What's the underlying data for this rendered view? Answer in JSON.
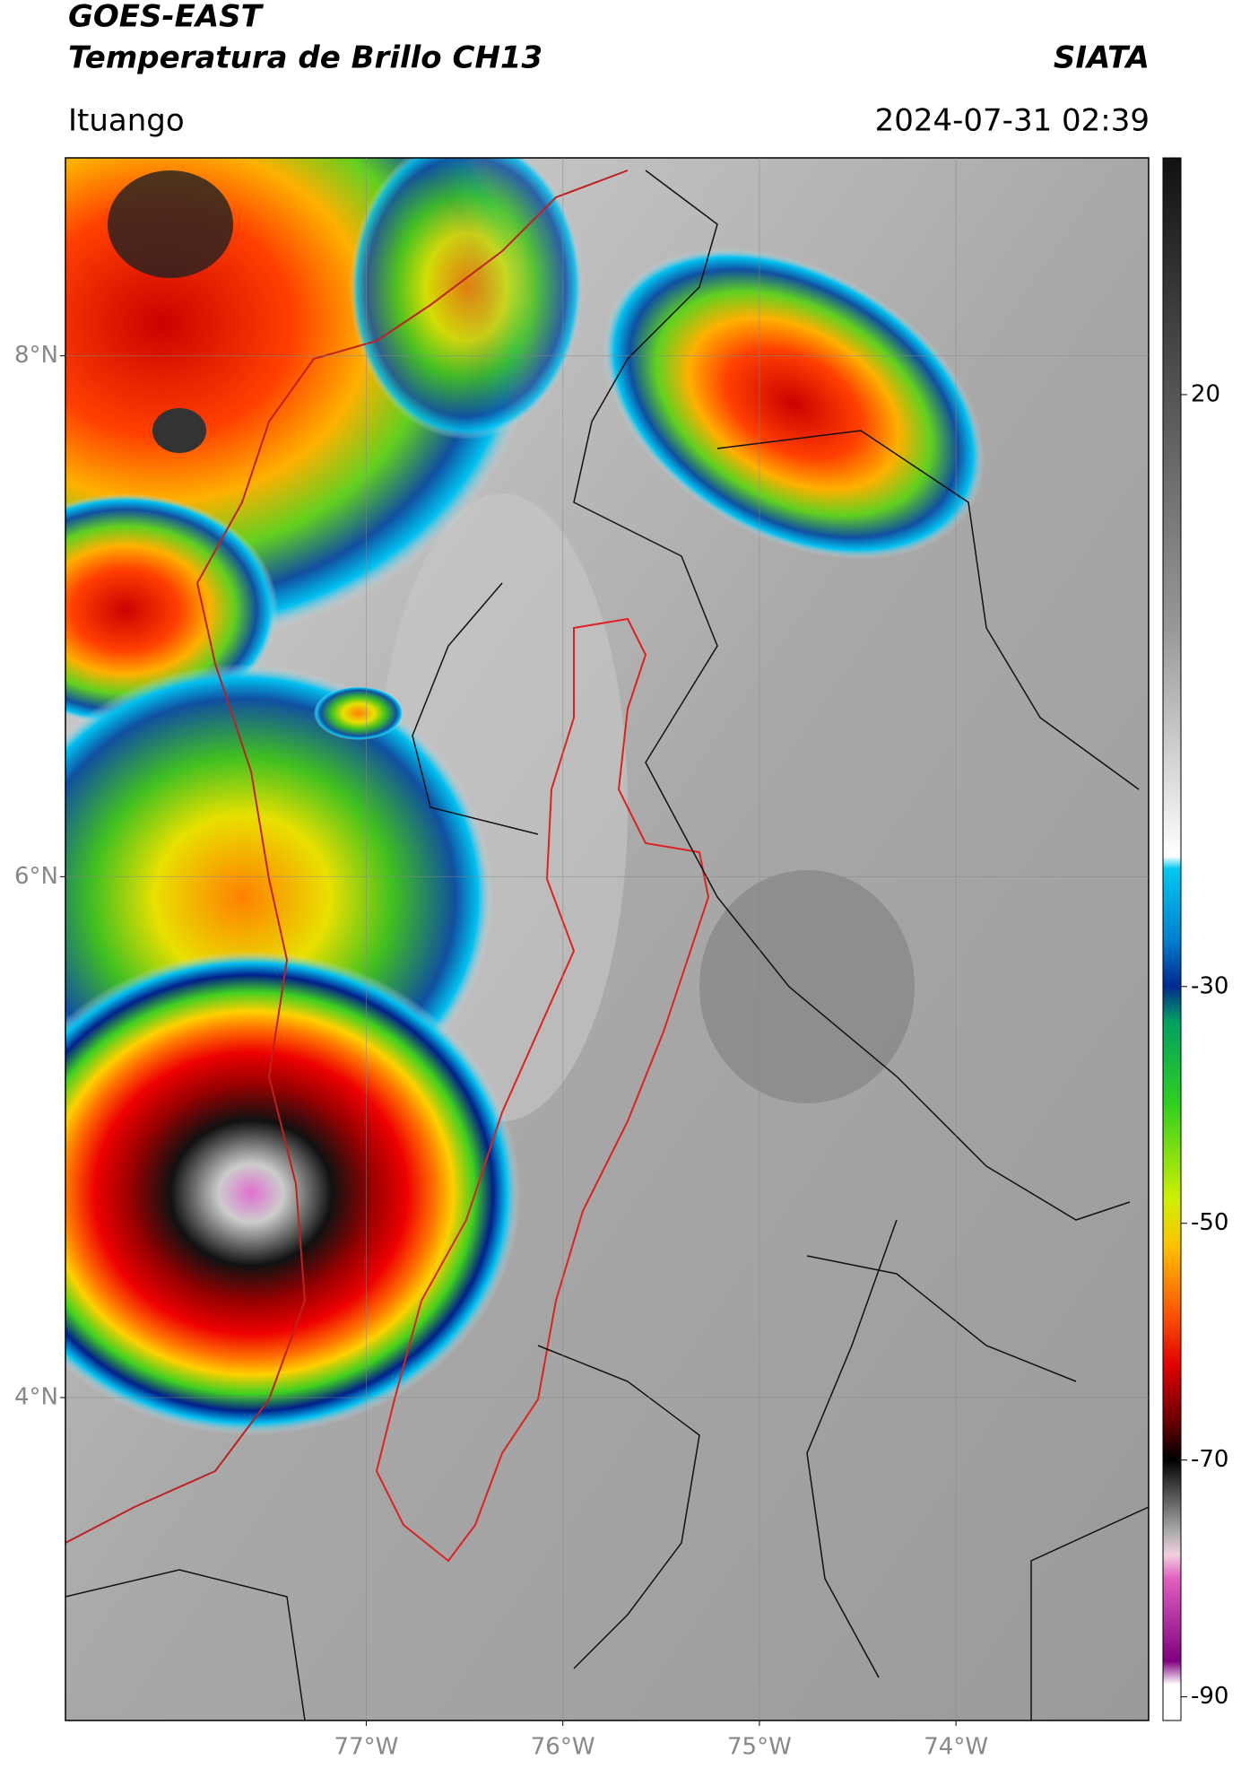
{
  "header": {
    "title": "GOES-EAST",
    "subtitle": "Temperatura de Brillo CH13",
    "brand": "SIATA",
    "location": "Ituango",
    "datetime": "2024-07-31 02:39"
  },
  "map": {
    "xlim": [
      -78.53,
      -73.02
    ],
    "ylim": [
      2.76,
      8.76
    ],
    "xticks": [
      {
        "value": -77,
        "label": "77°W"
      },
      {
        "value": -76,
        "label": "76°W"
      },
      {
        "value": -75,
        "label": "75°W"
      },
      {
        "value": -74,
        "label": "74°W"
      }
    ],
    "yticks": [
      {
        "value": 8,
        "label": "8°N"
      },
      {
        "value": 6,
        "label": "6°N"
      },
      {
        "value": 4,
        "label": "4°N"
      }
    ],
    "grid": true
  },
  "colorbar": {
    "lim": [
      -92,
      40
    ],
    "ticks": [
      20,
      -30,
      -50,
      -70,
      -90
    ]
  }
}
